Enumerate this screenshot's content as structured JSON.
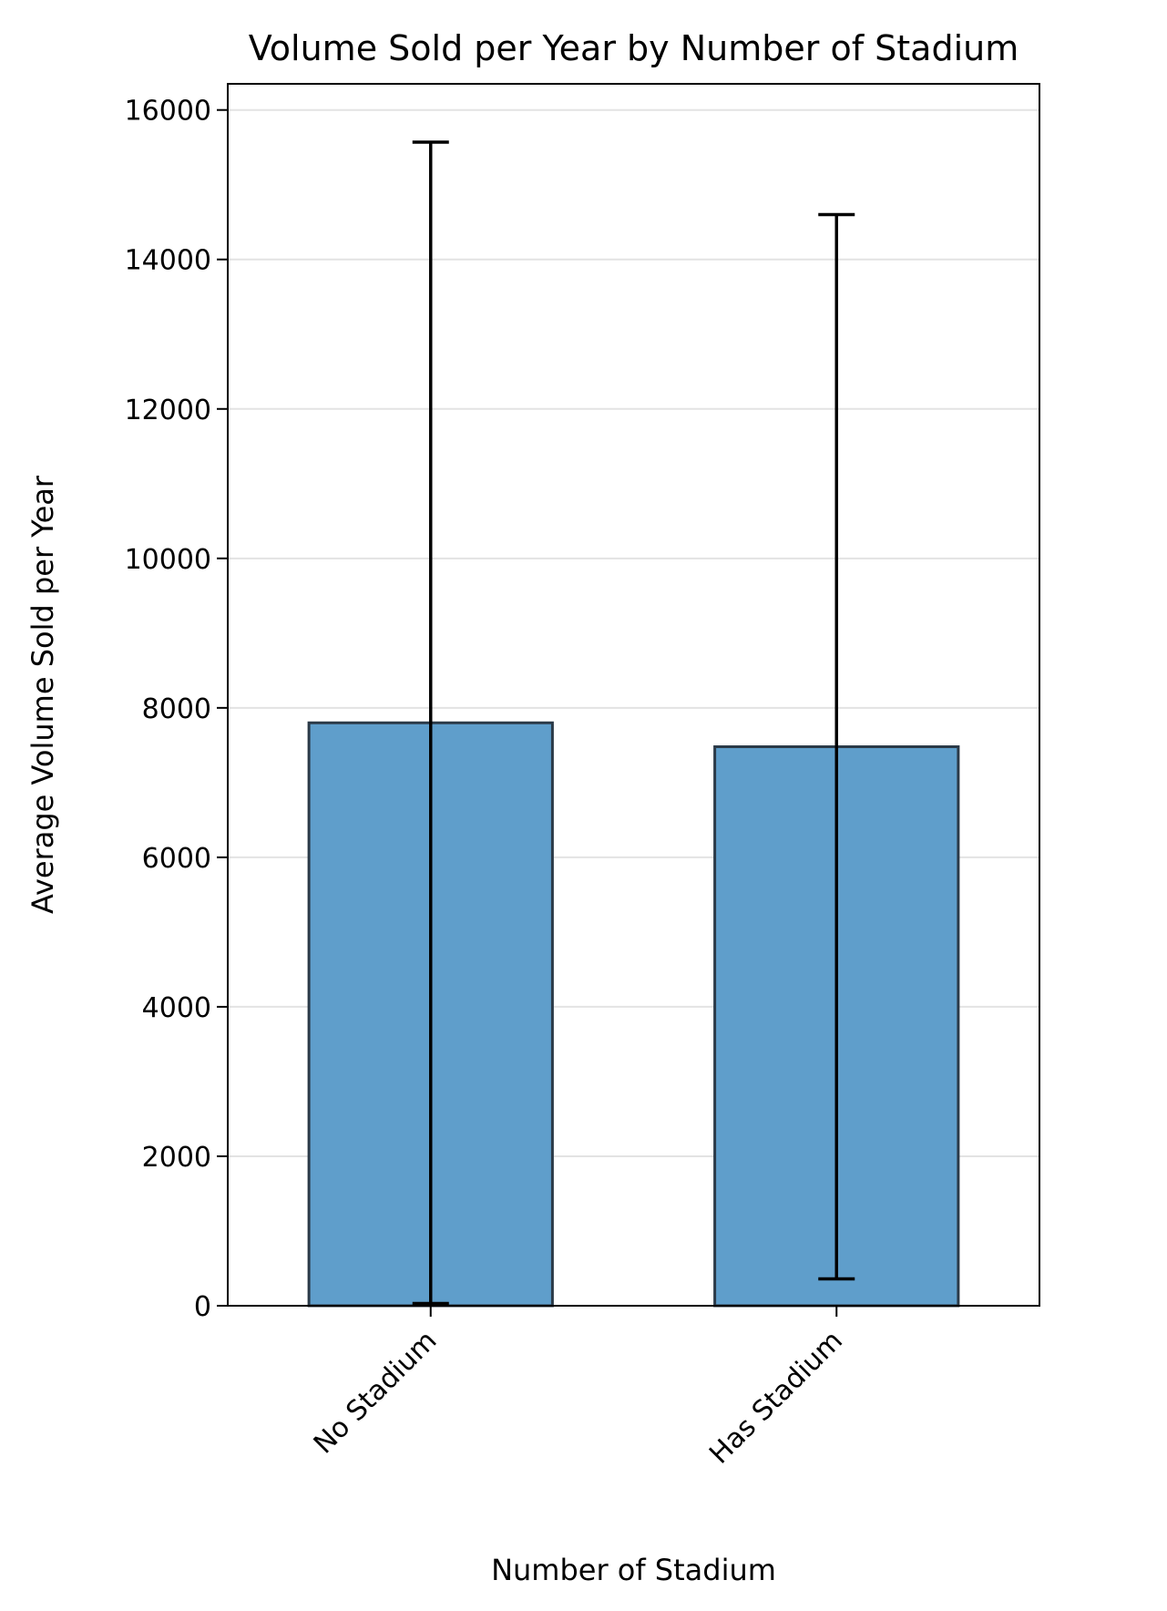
{
  "chart_data": {
    "type": "bar",
    "title": "Volume Sold per Year by Number of Stadium",
    "xlabel": "Number of Stadium",
    "ylabel": "Average Volume Sold per Year",
    "categories": [
      "No Stadium",
      "Has Stadium"
    ],
    "values": [
      7800,
      7480
    ],
    "error_low": [
      7770,
      7120
    ],
    "error_high": [
      7770,
      7120
    ],
    "ylim": [
      0,
      16350
    ],
    "yticks": [
      0,
      2000,
      4000,
      6000,
      8000,
      10000,
      12000,
      14000,
      16000
    ],
    "grid": "y",
    "legend": "none",
    "bar_color": "#5f9ecb",
    "bar_edge_color": "#2b3a48",
    "error_color": "#000000"
  }
}
